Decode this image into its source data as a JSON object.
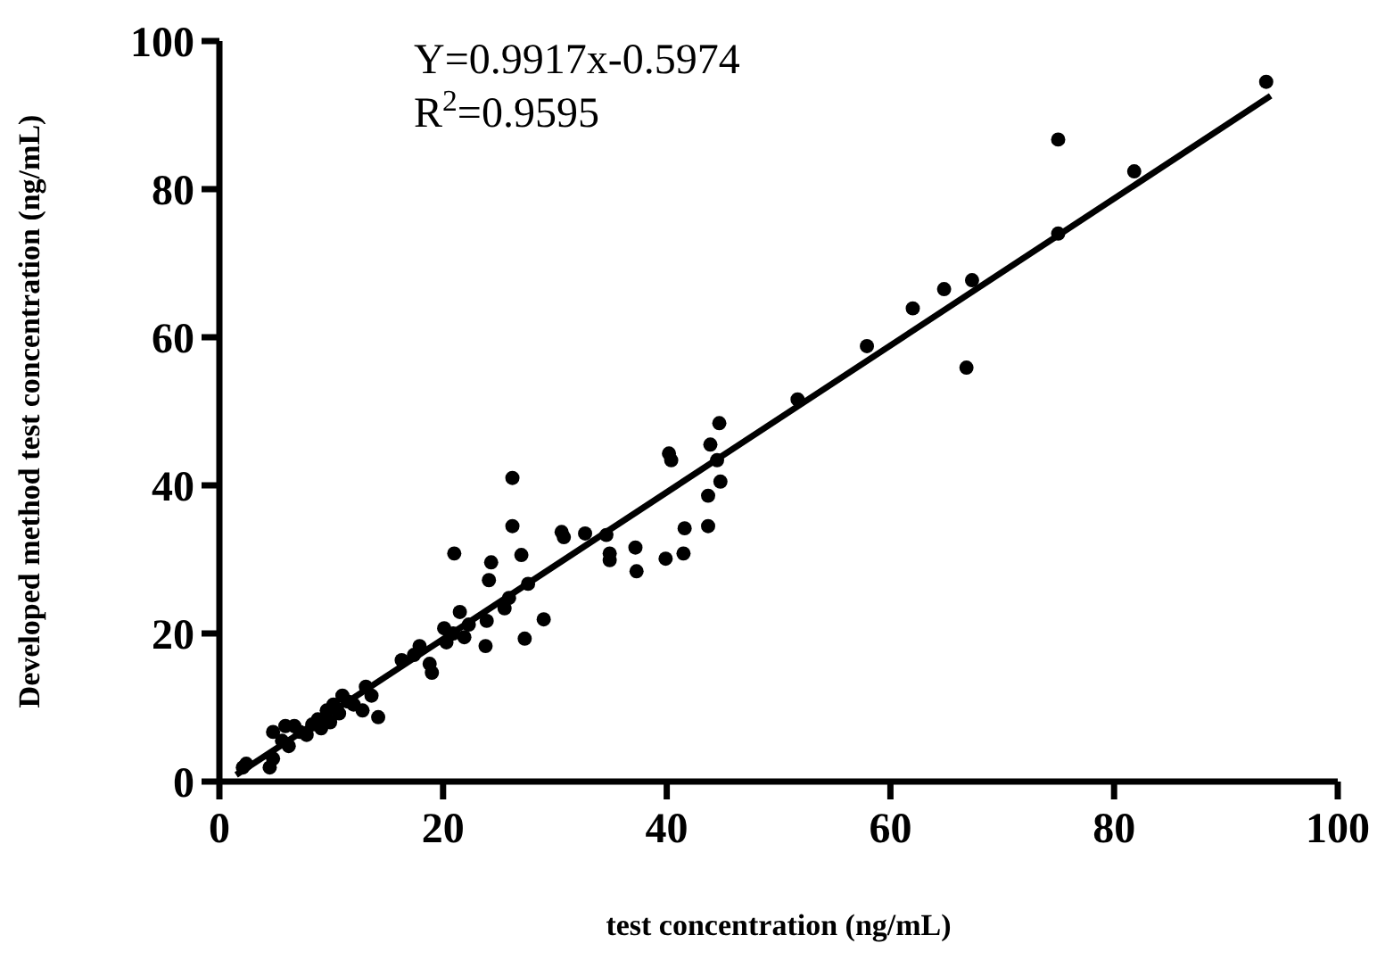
{
  "chart_data": {
    "type": "scatter",
    "xlabel": "test concentration (ng/mL)",
    "ylabel": "Developed method test concentration (ng/mL)",
    "annotations": [
      "Y=0.9917x-0.5974",
      "R$^{2}$=0.9595"
    ],
    "xlim": [
      0,
      100
    ],
    "ylim": [
      0,
      100
    ],
    "xticks": [
      0,
      20,
      40,
      60,
      80,
      100
    ],
    "yticks": [
      0,
      20,
      40,
      60,
      80,
      100
    ],
    "grid": false,
    "series": [
      {
        "color": "#000000",
        "marker": "circle",
        "x": [
          2.1,
          2.4,
          4.5,
          4.8,
          4.8,
          5.6,
          5.9,
          6.2,
          6.7,
          7.2,
          7.8,
          8.3,
          8.8,
          9.1,
          9.6,
          9.9,
          10.2,
          10.7,
          11,
          11.5,
          12,
          12.8,
          13.1,
          13.6,
          14.2,
          16.3,
          17.4,
          17.9,
          18.8,
          19,
          20.1,
          20.3,
          21,
          20.9,
          21.5,
          21.9,
          22.3,
          23.9,
          23.8,
          24.1,
          24.3,
          25.5,
          25.9,
          26.2,
          26.2,
          27,
          27.3,
          27.6,
          29,
          30.6,
          30.8,
          32.7,
          34.6,
          34.9,
          34.9,
          37.2,
          37.3,
          39.9,
          40.2,
          40.4,
          41.5,
          41.6,
          43.7,
          43.7,
          43.9,
          44.5,
          44.7,
          44.8,
          51.7,
          57.9,
          62,
          64.8,
          67.3,
          66.8,
          75,
          75,
          81.8,
          93.6
        ],
        "values": [
          1.9,
          2.4,
          1.9,
          3.1,
          6.7,
          5.5,
          7.5,
          4.8,
          7.5,
          6.7,
          6.3,
          7.7,
          8.4,
          7.2,
          9.6,
          8,
          10.4,
          9.2,
          11.6,
          10.8,
          10.4,
          9.6,
          12.8,
          11.6,
          8.7,
          16.4,
          17.1,
          18.3,
          15.9,
          14.7,
          20.7,
          18.8,
          30.8,
          20,
          22.9,
          19.5,
          21.2,
          21.7,
          18.3,
          27.2,
          29.6,
          23.4,
          24.8,
          41,
          34.5,
          30.6,
          19.3,
          26.7,
          21.9,
          33.7,
          33,
          33.5,
          33.3,
          30.8,
          29.9,
          31.6,
          28.4,
          30.1,
          44.3,
          43.4,
          30.8,
          34.2,
          34.5,
          38.6,
          45.5,
          43.4,
          48.4,
          40.5,
          51.6,
          58.8,
          63.9,
          66.5,
          67.7,
          55.9,
          86.7,
          74,
          82.4,
          94.5
        ]
      },
      {
        "type": "line",
        "color": "#000000",
        "line_style": "solid",
        "x": [
          1.5,
          94
        ],
        "values": [
          0.9,
          92.6
        ]
      }
    ]
  }
}
